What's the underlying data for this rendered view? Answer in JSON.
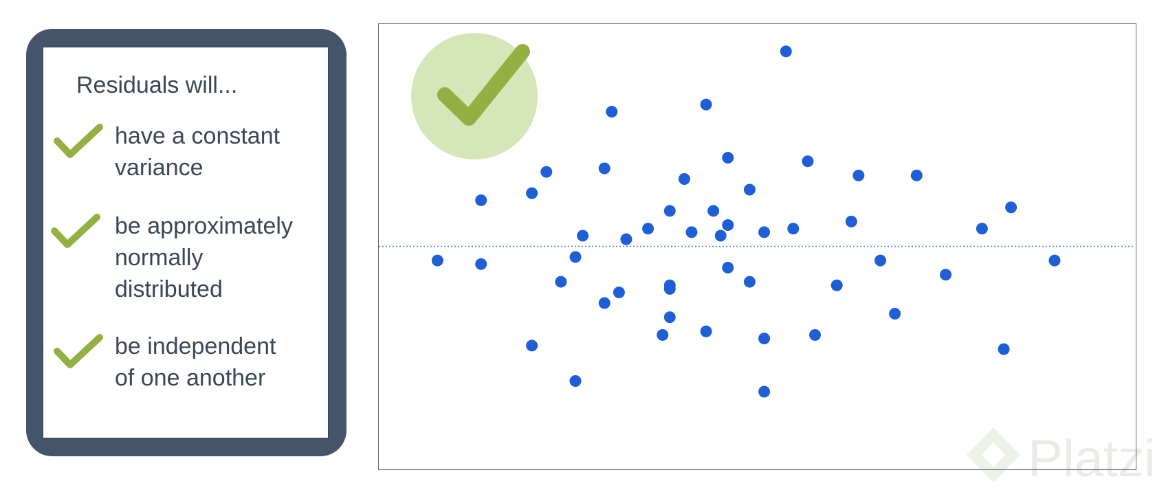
{
  "card": {
    "title": "Residuals will...",
    "items": [
      {
        "lines": [
          "have a constant",
          "variance"
        ]
      },
      {
        "lines": [
          "be approximately",
          "normally",
          "distributed"
        ]
      },
      {
        "lines": [
          "be independent",
          "of one another"
        ]
      }
    ]
  },
  "watermark": {
    "text": "Platzi"
  },
  "colors": {
    "card_frame": "#44546a",
    "check_green": "#93b043",
    "badge_fill": "#d5e6b8",
    "point_blue": "#1f5fd6",
    "reference_line": "#4a78c4"
  },
  "chart_data": {
    "type": "scatter",
    "title": "",
    "xlabel": "",
    "ylabel": "",
    "xlim": [
      0,
      100
    ],
    "ylim": [
      -6,
      6
    ],
    "grid": false,
    "reference_line": {
      "y": 0,
      "style": "dotted"
    },
    "badge": "check",
    "series": [
      {
        "points": [
          [
            6,
            -0.4
          ],
          [
            12,
            1.3
          ],
          [
            12,
            -0.5
          ],
          [
            19,
            1.5
          ],
          [
            19,
            -2.8
          ],
          [
            21,
            2.1
          ],
          [
            23,
            -1.0
          ],
          [
            25,
            -3.8
          ],
          [
            25,
            -0.3
          ],
          [
            26,
            0.3
          ],
          [
            29,
            2.2
          ],
          [
            29,
            -1.6
          ],
          [
            30,
            3.8
          ],
          [
            31,
            -1.3
          ],
          [
            32,
            0.2
          ],
          [
            35,
            0.5
          ],
          [
            37,
            -2.5
          ],
          [
            38,
            -1.2
          ],
          [
            38,
            -1.1
          ],
          [
            38,
            1.0
          ],
          [
            38,
            -2.0
          ],
          [
            40,
            1.9
          ],
          [
            41,
            0.4
          ],
          [
            43,
            -2.4
          ],
          [
            43,
            4.0
          ],
          [
            44,
            1.0
          ],
          [
            45,
            0.3
          ],
          [
            46,
            -0.6
          ],
          [
            46,
            0.6
          ],
          [
            46,
            2.5
          ],
          [
            49,
            -1.0
          ],
          [
            49,
            1.6
          ],
          [
            51,
            0.4
          ],
          [
            51,
            -4.1
          ],
          [
            51,
            -2.6
          ],
          [
            54,
            5.5
          ],
          [
            55,
            0.5
          ],
          [
            57,
            2.4
          ],
          [
            58,
            -2.5
          ],
          [
            61,
            -1.1
          ],
          [
            63,
            0.7
          ],
          [
            64,
            2.0
          ],
          [
            67,
            -0.4
          ],
          [
            69,
            -1.9
          ],
          [
            72,
            2.0
          ],
          [
            76,
            -0.8
          ],
          [
            81,
            0.5
          ],
          [
            84,
            -2.9
          ],
          [
            85,
            1.1
          ],
          [
            91,
            -0.4
          ]
        ]
      }
    ]
  }
}
